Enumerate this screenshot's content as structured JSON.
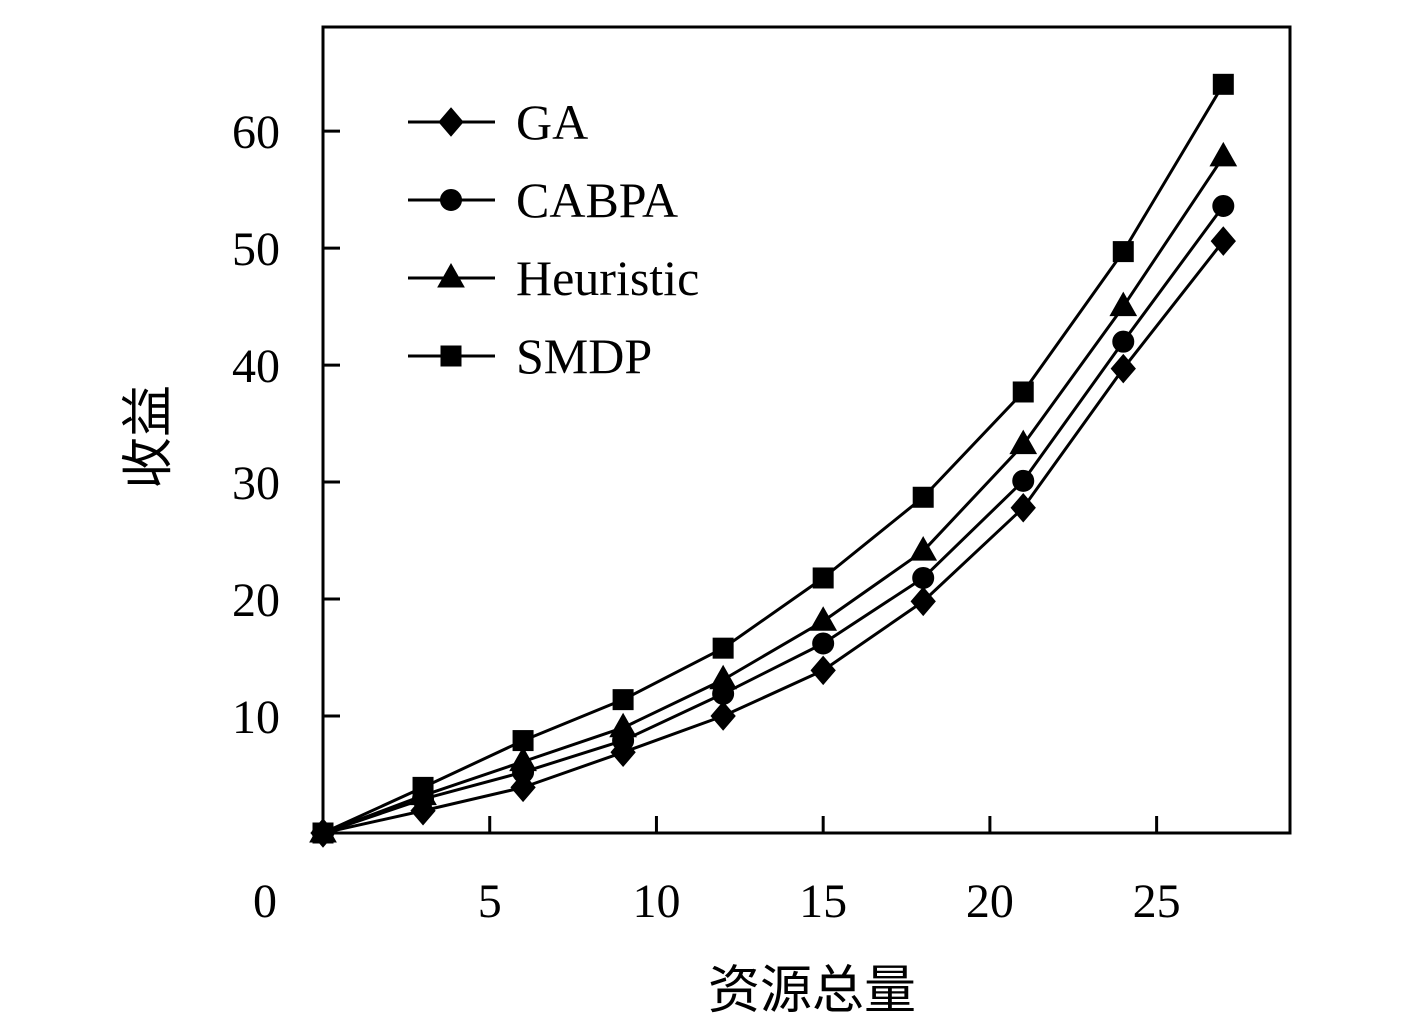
{
  "chart_data": {
    "type": "line",
    "x": [
      0,
      3,
      6,
      9,
      12,
      15,
      18,
      21,
      24,
      27
    ],
    "series": [
      {
        "name": "GA",
        "marker": "diamond",
        "values": [
          0,
          1.9,
          3.9,
          6.9,
          10,
          13.9,
          19.8,
          27.8,
          39.7,
          50.6
        ]
      },
      {
        "name": "CABPA",
        "marker": "circle",
        "values": [
          0,
          2.9,
          5.2,
          7.9,
          11.9,
          16.2,
          21.8,
          30.1,
          42,
          53.6
        ]
      },
      {
        "name": "Heuristic",
        "marker": "triangle",
        "values": [
          0,
          3.2,
          6.1,
          9,
          13.1,
          18.1,
          24.1,
          33.2,
          45,
          57.8
        ]
      },
      {
        "name": "SMDP",
        "marker": "square",
        "values": [
          0,
          3.9,
          7.9,
          11.4,
          15.8,
          21.8,
          28.7,
          37.7,
          49.7,
          64
        ]
      }
    ],
    "xlabel": "资源总量",
    "ylabel": "收益",
    "xlim": [
      0,
      29
    ],
    "ylim": [
      0,
      68.9
    ],
    "xticks": [
      5,
      10,
      15,
      20,
      25
    ],
    "yticks": [
      10,
      20,
      30,
      40,
      50,
      60
    ],
    "origin_label": "0",
    "legend": "top-left",
    "grid": false,
    "color": "#000000"
  }
}
